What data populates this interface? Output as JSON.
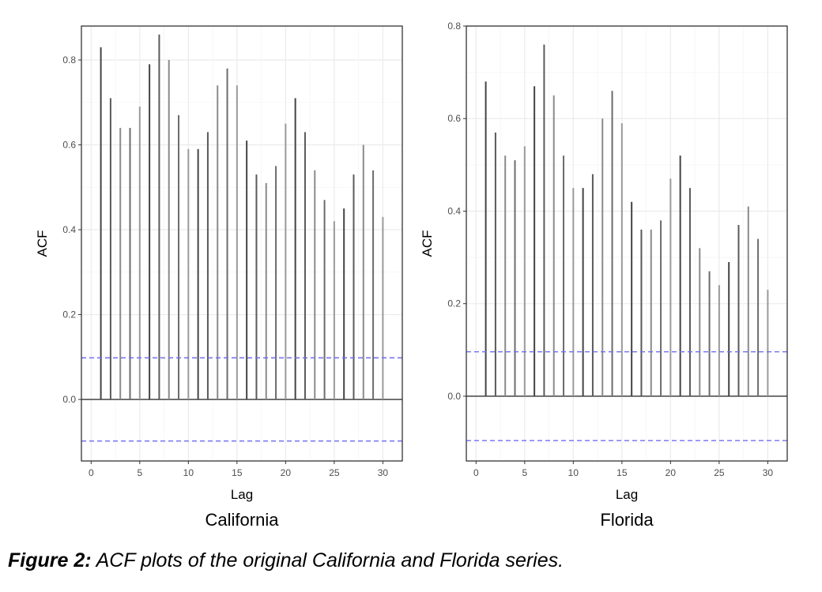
{
  "figure": {
    "caption_lead": "Figure 2:",
    "caption_text": " ACF plots of the original California and Florida series."
  },
  "chart_data": [
    {
      "type": "bar",
      "subtitle": "California",
      "xlabel": "Lag",
      "ylabel": "ACF",
      "xlim": [
        -1,
        32
      ],
      "ylim": [
        -0.145,
        0.88
      ],
      "xticks": [
        0,
        5,
        10,
        15,
        20,
        25,
        30
      ],
      "yticks": [
        0.0,
        0.2,
        0.4,
        0.6,
        0.8
      ],
      "ytick_labels": [
        "0.0",
        "0.2",
        "0.4",
        "0.6",
        "0.8"
      ],
      "grid": true,
      "confidence_bounds": [
        0.098,
        -0.098
      ],
      "x": [
        1,
        2,
        3,
        4,
        5,
        6,
        7,
        8,
        9,
        10,
        11,
        12,
        13,
        14,
        15,
        16,
        17,
        18,
        19,
        20,
        21,
        22,
        23,
        24,
        25,
        26,
        27,
        28,
        29,
        30
      ],
      "values": [
        0.83,
        0.71,
        0.64,
        0.64,
        0.69,
        0.79,
        0.86,
        0.8,
        0.67,
        0.59,
        0.59,
        0.63,
        0.74,
        0.78,
        0.74,
        0.61,
        0.53,
        0.51,
        0.55,
        0.65,
        0.71,
        0.63,
        0.54,
        0.47,
        0.42,
        0.45,
        0.53,
        0.6,
        0.54,
        0.43
      ]
    },
    {
      "type": "bar",
      "subtitle": "Florida",
      "xlabel": "Lag",
      "ylabel": "ACF",
      "xlim": [
        -1,
        32
      ],
      "ylim": [
        -0.14,
        0.8
      ],
      "xticks": [
        0,
        5,
        10,
        15,
        20,
        25,
        30
      ],
      "yticks": [
        0.0,
        0.2,
        0.4,
        0.6,
        0.8
      ],
      "ytick_labels": [
        "0.0",
        "0.2",
        "0.4",
        "0.6",
        "0.8"
      ],
      "grid": true,
      "confidence_bounds": [
        0.096,
        -0.096
      ],
      "x": [
        1,
        2,
        3,
        4,
        5,
        6,
        7,
        8,
        9,
        10,
        11,
        12,
        13,
        14,
        15,
        16,
        17,
        18,
        19,
        20,
        21,
        22,
        23,
        24,
        25,
        26,
        27,
        28,
        29,
        30
      ],
      "values": [
        0.68,
        0.57,
        0.52,
        0.51,
        0.54,
        0.67,
        0.76,
        0.65,
        0.52,
        0.45,
        0.45,
        0.48,
        0.6,
        0.66,
        0.59,
        0.42,
        0.36,
        0.36,
        0.38,
        0.47,
        0.52,
        0.45,
        0.32,
        0.27,
        0.24,
        0.29,
        0.37,
        0.41,
        0.34,
        0.23
      ]
    }
  ]
}
